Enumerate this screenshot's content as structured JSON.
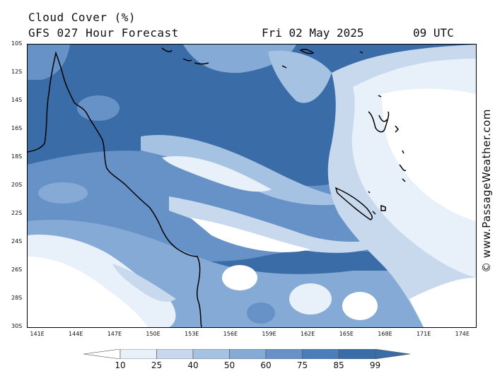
{
  "title": {
    "line1": "Cloud Cover (%)",
    "line2": "GFS 027 Hour Forecast",
    "valid_date": "Fri 02 May 2025",
    "valid_time": "09 UTC"
  },
  "watermark": "© www.PassageWeather.com",
  "axes": {
    "lat_labels": [
      "10S",
      "12S",
      "14S",
      "16S",
      "18S",
      "20S",
      "22S",
      "24S",
      "26S",
      "28S",
      "30S"
    ],
    "lon_labels": [
      "141E",
      "144E",
      "147E",
      "150E",
      "153E",
      "156E",
      "159E",
      "162E",
      "165E",
      "168E",
      "171E",
      "174E"
    ],
    "lat_range": [
      -10,
      -30
    ],
    "lon_range": [
      140.2,
      175
    ]
  },
  "legend": {
    "ticks": [
      "10",
      "25",
      "40",
      "50",
      "60",
      "75",
      "85",
      "99"
    ],
    "colors": [
      "#ffffff",
      "#e8f0fa",
      "#c8d9ee",
      "#a6c2e3",
      "#85aad6",
      "#6792c8",
      "#4c7cba",
      "#3a6ca8"
    ]
  }
}
